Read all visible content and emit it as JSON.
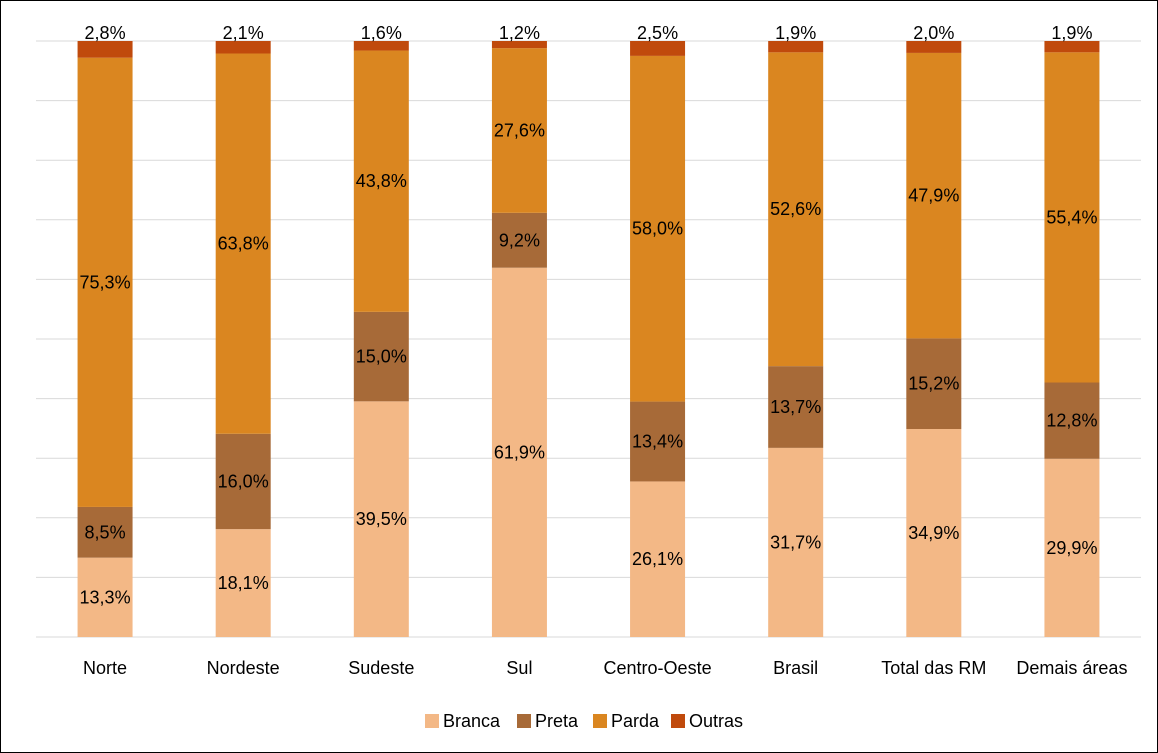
{
  "chart_data": {
    "type": "bar",
    "stacked": true,
    "categories": [
      "Norte",
      "Nordeste",
      "Sudeste",
      "Sul",
      "Centro-Oeste",
      "Brasil",
      "Total das RM",
      "Demais áreas"
    ],
    "series": [
      {
        "name": "Branca",
        "color": "#F3B886",
        "values": [
          13.3,
          18.1,
          39.5,
          61.9,
          26.1,
          31.7,
          34.9,
          29.9
        ],
        "labels": [
          "13,3%",
          "18,1%",
          "39,5%",
          "61,9%",
          "26,1%",
          "31,7%",
          "34,9%",
          "29,9%"
        ]
      },
      {
        "name": "Preta",
        "color": "#A76A38",
        "values": [
          8.5,
          16.0,
          15.0,
          9.2,
          13.4,
          13.7,
          15.2,
          12.8
        ],
        "labels": [
          "8,5%",
          "16,0%",
          "15,0%",
          "9,2%",
          "13,4%",
          "13,7%",
          "15,2%",
          "12,8%"
        ]
      },
      {
        "name": "Parda",
        "color": "#DA8620",
        "values": [
          75.3,
          63.8,
          43.8,
          27.6,
          58.0,
          52.6,
          47.9,
          55.4
        ],
        "labels": [
          "75,3%",
          "63,8%",
          "43,8%",
          "27,6%",
          "58,0%",
          "52,6%",
          "47,9%",
          "55,4%"
        ]
      },
      {
        "name": "Outras",
        "color": "#C04A0C",
        "values": [
          2.8,
          2.1,
          1.6,
          1.2,
          2.5,
          1.9,
          2.0,
          1.9
        ],
        "labels": [
          "2,8%",
          "2,1%",
          "1,6%",
          "1,2%",
          "2,5%",
          "1,9%",
          "2,0%",
          "1,9%"
        ]
      }
    ],
    "ylim": [
      0,
      100
    ],
    "grid": true,
    "gridline_color": "#D9D9D9",
    "legend_position": "bottom",
    "title": "",
    "xlabel": "",
    "ylabel": ""
  }
}
